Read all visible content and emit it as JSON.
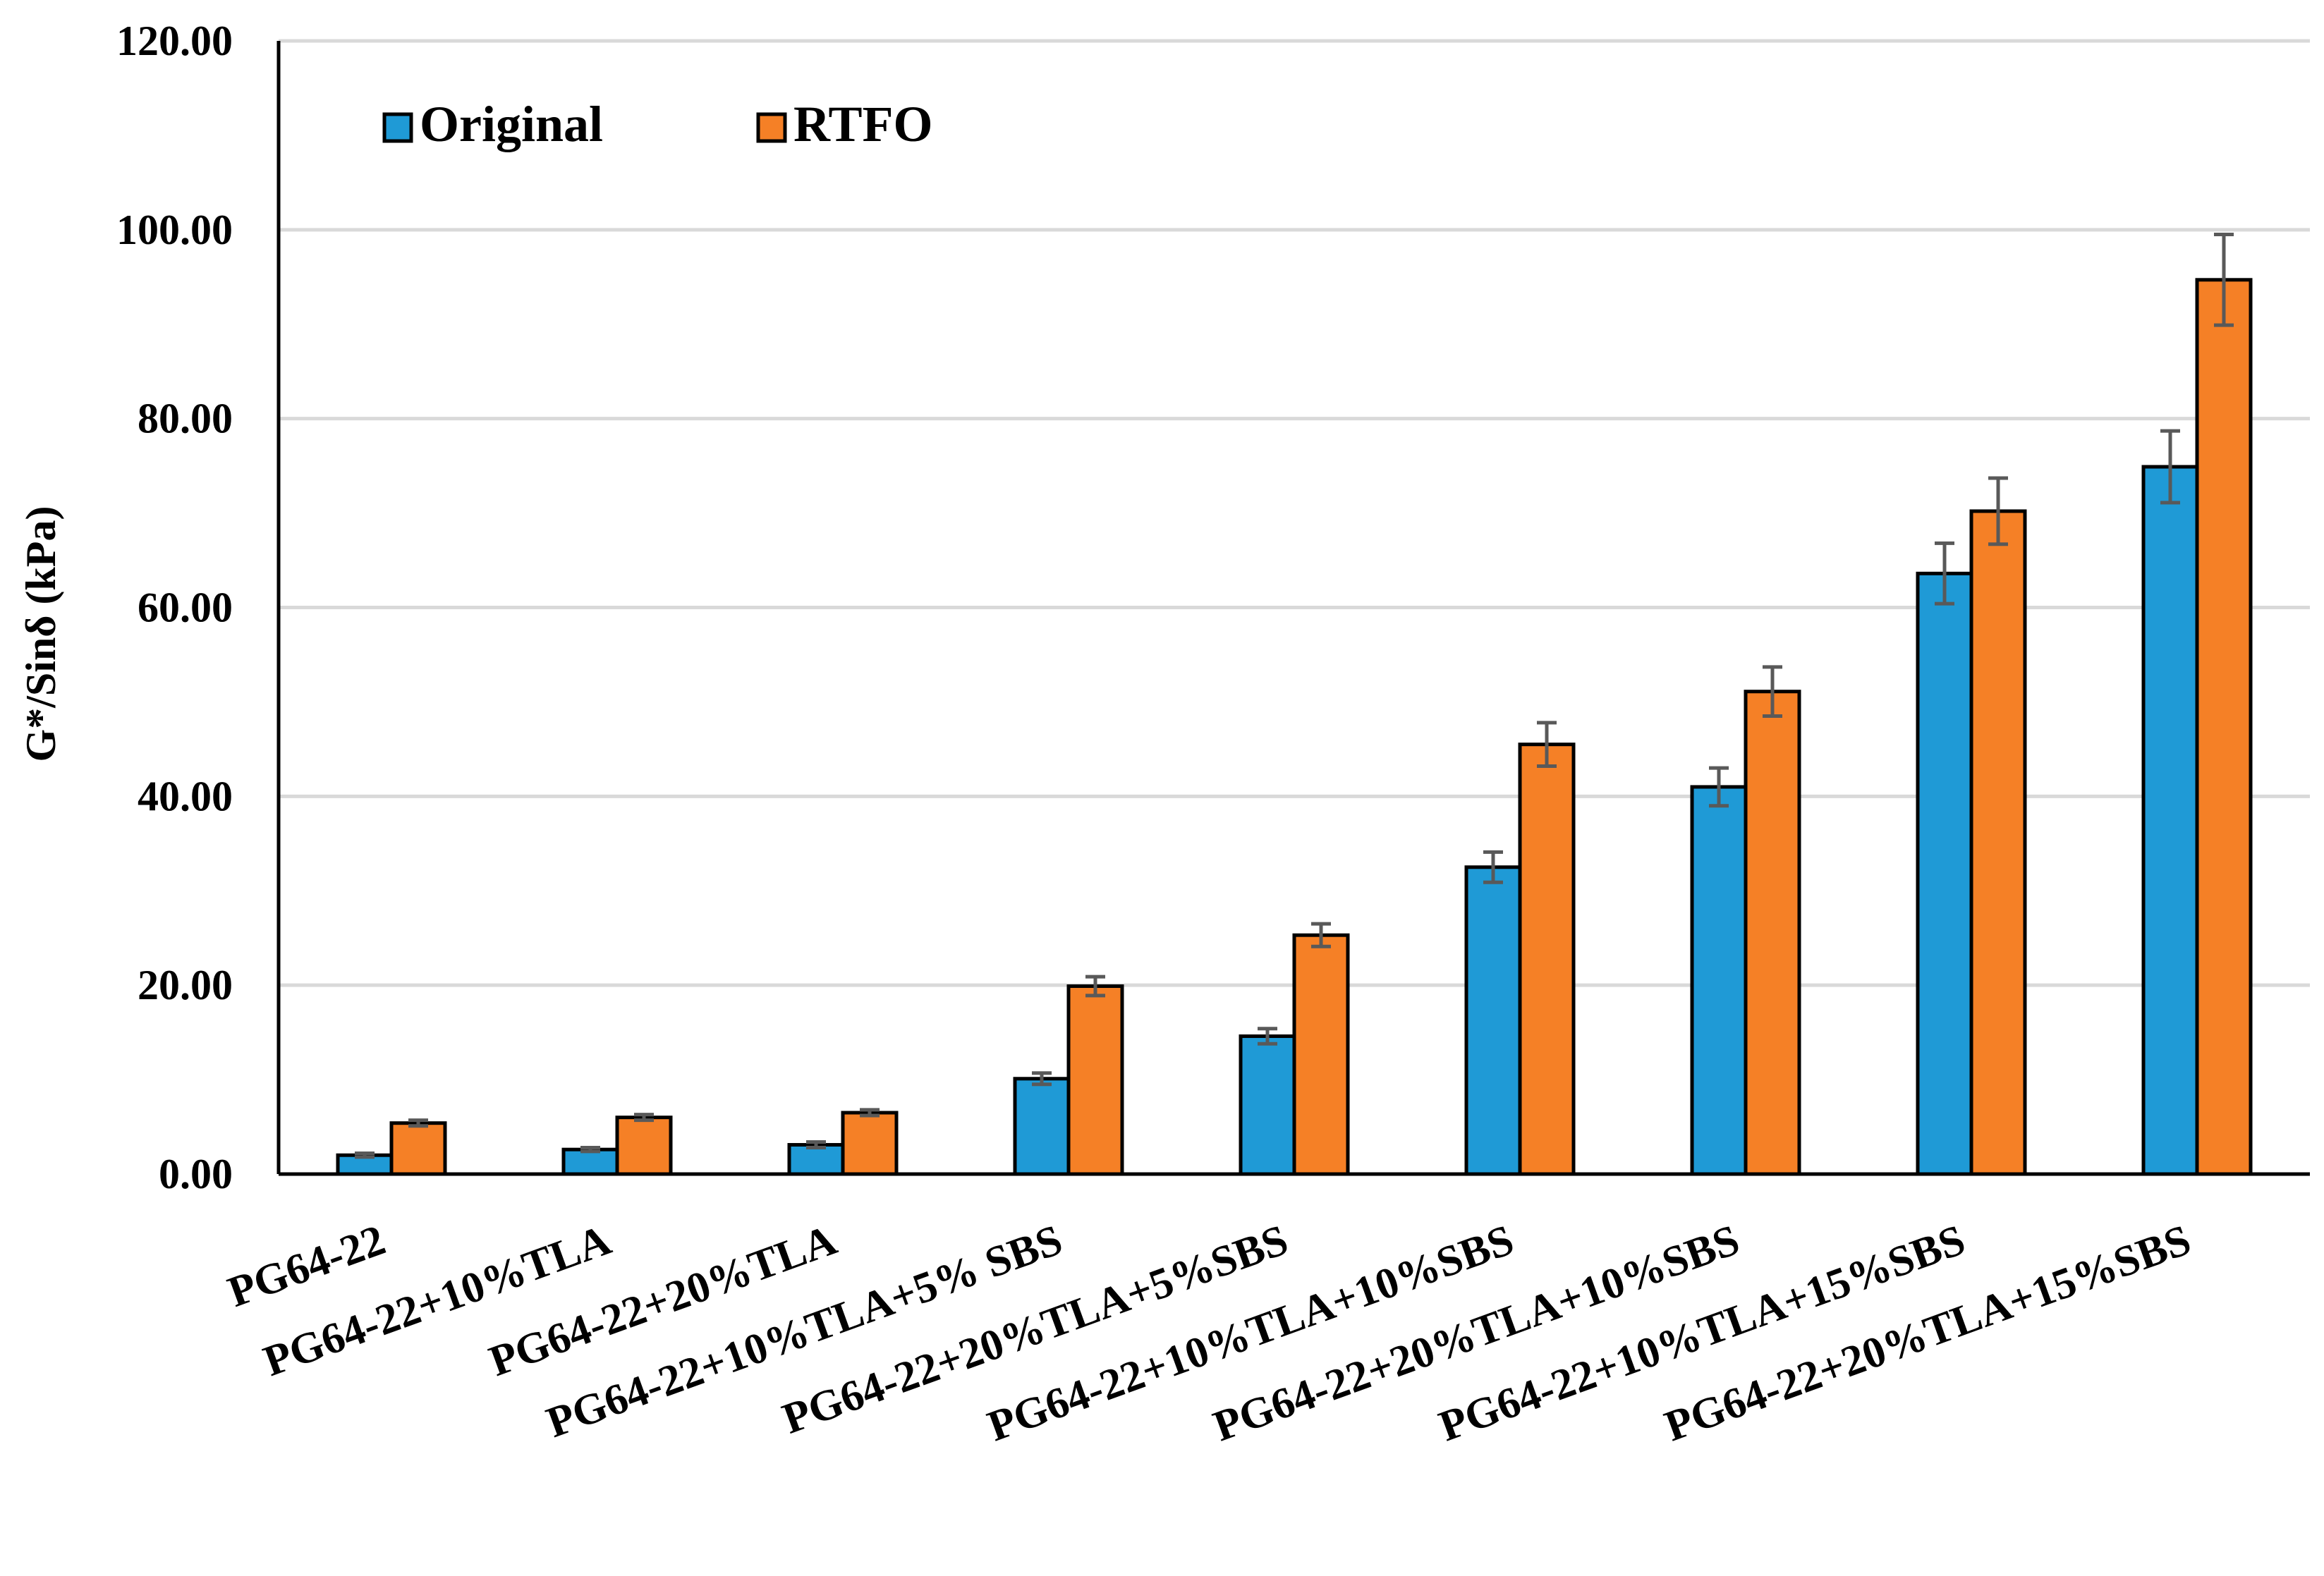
{
  "chart_data": {
    "type": "bar",
    "title": "",
    "xlabel": "",
    "ylabel": "G*/Sinδ (kPa)",
    "ylim": [
      0,
      120
    ],
    "y_ticks": [
      "0.00",
      "20.00",
      "40.00",
      "60.00",
      "80.00",
      "100.00",
      "120.00"
    ],
    "grid": true,
    "legend_position": "top-left",
    "categories": [
      "PG64-22",
      "PG64-22+10%TLA",
      "PG64-22+20%TLA",
      "PG64-22+10%TLA+5% SBS",
      "PG64-22+20%TLA+5%SBS",
      "PG64-22+10%TLA+10%SBS",
      "PG64-22+20%TLA+10%SBS",
      "PG64-22+10%TLA+15%SBS",
      "PG64-22+20%TLA+15%SBS"
    ],
    "series": [
      {
        "name": "Original",
        "color": "#1f9ad6",
        "values": [
          2.0,
          2.6,
          3.1,
          10.1,
          14.6,
          32.5,
          41.0,
          63.6,
          74.9
        ],
        "errors": [
          0.2,
          0.2,
          0.3,
          0.6,
          0.8,
          1.6,
          2.0,
          3.2,
          3.8
        ]
      },
      {
        "name": "RTFO",
        "color": "#f58026",
        "values": [
          5.4,
          6.0,
          6.5,
          19.9,
          25.3,
          45.5,
          51.1,
          70.2,
          94.7
        ],
        "errors": [
          0.3,
          0.3,
          0.3,
          1.0,
          1.2,
          2.3,
          2.6,
          3.5,
          4.8
        ]
      }
    ]
  }
}
